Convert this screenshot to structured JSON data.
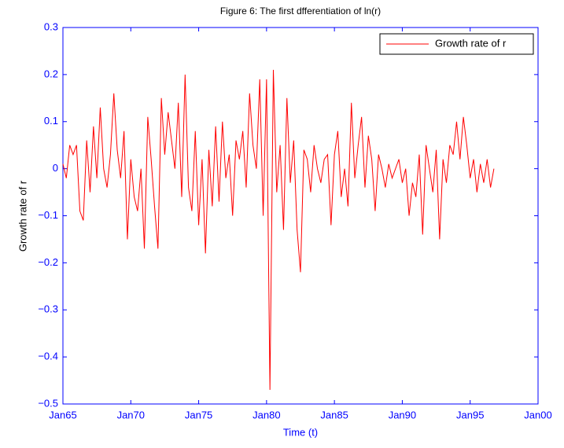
{
  "chart_data": {
    "type": "line",
    "title": "Figure 6: The first dfferentiation of ln(r)",
    "xlabel": "Time (t)",
    "ylabel": "Growth rate of r",
    "x": [
      1965,
      1965.25,
      1965.5,
      1965.75,
      1966,
      1966.25,
      1966.5,
      1966.75,
      1967,
      1967.25,
      1967.5,
      1967.75,
      1968,
      1968.25,
      1968.5,
      1968.75,
      1969,
      1969.25,
      1969.5,
      1969.75,
      1970,
      1970.25,
      1970.5,
      1970.75,
      1971,
      1971.25,
      1971.5,
      1971.75,
      1972,
      1972.25,
      1972.5,
      1972.75,
      1973,
      1973.25,
      1973.5,
      1973.75,
      1974,
      1974.25,
      1974.5,
      1974.75,
      1975,
      1975.25,
      1975.5,
      1975.75,
      1976,
      1976.25,
      1976.5,
      1976.75,
      1977,
      1977.25,
      1977.5,
      1977.75,
      1978,
      1978.25,
      1978.5,
      1978.75,
      1979,
      1979.25,
      1979.5,
      1979.75,
      1980,
      1980.25,
      1980.5,
      1980.75,
      1981,
      1981.25,
      1981.5,
      1981.75,
      1982,
      1982.25,
      1982.5,
      1982.75,
      1983,
      1983.25,
      1983.5,
      1983.75,
      1984,
      1984.25,
      1984.5,
      1984.75,
      1985,
      1985.25,
      1985.5,
      1985.75,
      1986,
      1986.25,
      1986.5,
      1986.75,
      1987,
      1987.25,
      1987.5,
      1987.75,
      1988,
      1988.25,
      1988.5,
      1988.75,
      1989,
      1989.25,
      1989.5,
      1989.75,
      1990,
      1990.25,
      1990.5,
      1990.75,
      1991,
      1991.25,
      1991.5,
      1991.75,
      1992,
      1992.25,
      1992.5,
      1992.75,
      1993,
      1993.25,
      1993.5,
      1993.75,
      1994,
      1994.25,
      1994.5,
      1994.75,
      1995,
      1995.25,
      1995.5,
      1995.75,
      1996,
      1996.25,
      1996.5,
      1996.75
    ],
    "series": [
      {
        "name": "Growth rate of r",
        "color": "#ff0000",
        "values": [
          0.01,
          -0.02,
          0.05,
          0.03,
          0.05,
          -0.09,
          -0.11,
          0.06,
          -0.05,
          0.09,
          -0.02,
          0.13,
          0.0,
          -0.04,
          0.03,
          0.16,
          0.04,
          -0.02,
          0.08,
          -0.15,
          0.02,
          -0.06,
          -0.09,
          0.0,
          -0.17,
          0.11,
          0.02,
          -0.08,
          -0.17,
          0.15,
          0.03,
          0.12,
          0.06,
          0.0,
          0.14,
          -0.06,
          0.2,
          -0.04,
          -0.09,
          0.08,
          -0.12,
          0.02,
          -0.18,
          0.04,
          -0.08,
          0.09,
          -0.07,
          0.1,
          -0.02,
          0.03,
          -0.1,
          0.06,
          0.02,
          0.08,
          -0.04,
          0.16,
          0.05,
          0.0,
          0.19,
          -0.1,
          0.19,
          -0.47,
          0.21,
          -0.05,
          0.05,
          -0.13,
          0.15,
          -0.03,
          0.06,
          -0.13,
          -0.22,
          0.04,
          0.02,
          -0.05,
          0.05,
          0.0,
          -0.03,
          0.02,
          0.03,
          -0.12,
          0.03,
          0.08,
          -0.06,
          0.0,
          -0.08,
          0.14,
          -0.02,
          0.05,
          0.11,
          -0.04,
          0.07,
          0.02,
          -0.09,
          0.03,
          0.0,
          -0.04,
          0.01,
          -0.02,
          0.0,
          0.02,
          -0.03,
          0.0,
          -0.1,
          -0.03,
          -0.06,
          0.03,
          -0.14,
          0.05,
          0.0,
          -0.05,
          0.04,
          -0.15,
          0.02,
          -0.03,
          0.05,
          0.03,
          0.1,
          0.02,
          0.11,
          0.05,
          -0.02,
          0.02,
          -0.05,
          0.01,
          -0.03,
          0.02,
          -0.04,
          0.0
        ]
      }
    ],
    "xlim": [
      1965,
      2000
    ],
    "xticks": [
      {
        "value": 1965,
        "label": "Jan65"
      },
      {
        "value": 1970,
        "label": "Jan70"
      },
      {
        "value": 1975,
        "label": "Jan75"
      },
      {
        "value": 1980,
        "label": "Jan80"
      },
      {
        "value": 1985,
        "label": "Jan85"
      },
      {
        "value": 1990,
        "label": "Jan90"
      },
      {
        "value": 1995,
        "label": "Jan95"
      },
      {
        "value": 2000,
        "label": "Jan00"
      }
    ],
    "ylim": [
      -0.5,
      0.3
    ],
    "yticks": [
      {
        "value": -0.5,
        "label": "−0.5"
      },
      {
        "value": -0.4,
        "label": "−0.4"
      },
      {
        "value": -0.3,
        "label": "−0.3"
      },
      {
        "value": -0.2,
        "label": "−0.2"
      },
      {
        "value": -0.1,
        "label": "−0.1"
      },
      0,
      0.1,
      0.2,
      0.3
    ],
    "axis_color": "#0000ff",
    "legend": "upper right"
  }
}
